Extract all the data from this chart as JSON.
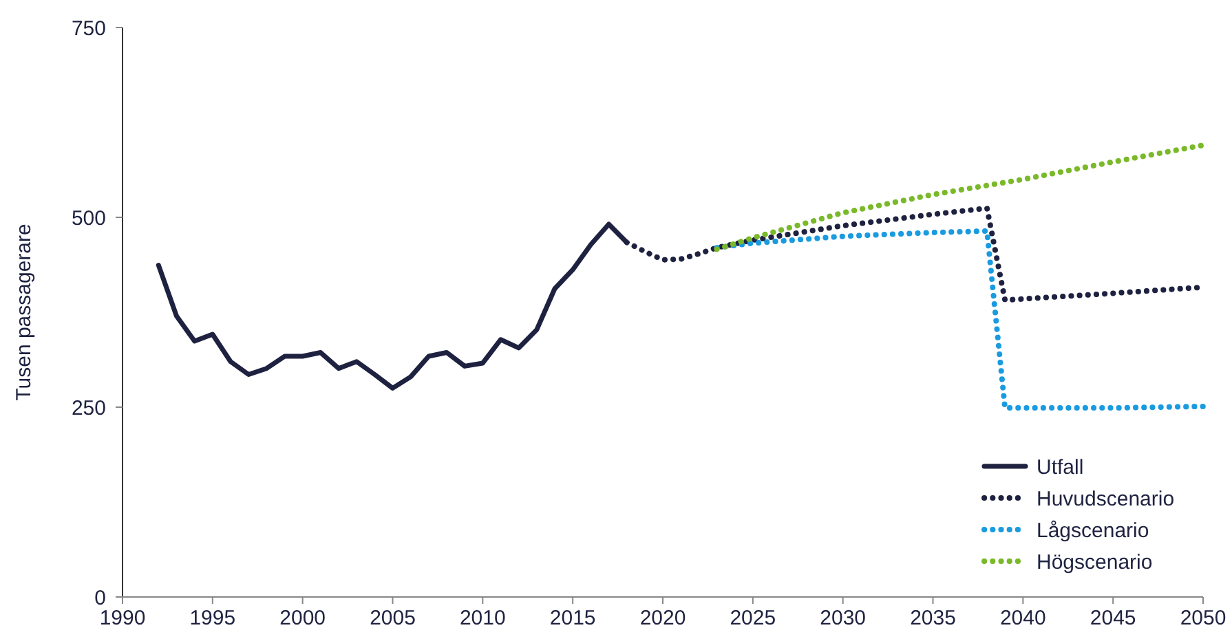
{
  "chart_data": {
    "type": "line",
    "ylabel": "Tusen passagerare",
    "xlim": [
      1990,
      2050
    ],
    "xticks": [
      1990,
      1995,
      2000,
      2005,
      2010,
      2015,
      2020,
      2025,
      2030,
      2035,
      2040,
      2045,
      2050
    ],
    "ylim": [
      0,
      750
    ],
    "yticks": [
      0,
      250,
      500,
      750
    ],
    "grid": false,
    "legend": "bottom right",
    "series": [
      {
        "name": "Utfall",
        "color": "#1e2240",
        "line_style": "solid",
        "x": [
          1992,
          1993,
          1994,
          1995,
          1996,
          1997,
          1998,
          1999,
          2000,
          2001,
          2002,
          2003,
          2004,
          2005,
          2006,
          2007,
          2008,
          2009,
          2010,
          2011,
          2012,
          2013,
          2014,
          2015,
          2016,
          2017,
          2018
        ],
        "values": [
          437,
          370,
          337,
          346,
          310,
          293,
          301,
          317,
          317,
          322,
          301,
          310,
          293,
          275,
          290,
          317,
          322,
          304,
          308,
          339,
          328,
          352,
          406,
          431,
          464,
          491,
          467
        ]
      },
      {
        "name": "Huvudscenario",
        "color": "#1e2240",
        "line_style": "dotted",
        "x": [
          2018,
          2019,
          2020,
          2021,
          2022,
          2023,
          2025,
          2030,
          2035,
          2038,
          2039,
          2045,
          2050
        ],
        "values": [
          467,
          455,
          444,
          445,
          452,
          460,
          470,
          489,
          504,
          512,
          391,
          400,
          408
        ]
      },
      {
        "name": "Lågscenario",
        "color": "#1a9be0",
        "line_style": "dotted",
        "x": [
          2023,
          2025,
          2030,
          2035,
          2038,
          2039,
          2045,
          2050
        ],
        "values": [
          460,
          466,
          475,
          480,
          482,
          249,
          249,
          251
        ]
      },
      {
        "name": "Högscenario",
        "color": "#7ab929",
        "line_style": "dotted",
        "x": [
          2023,
          2025,
          2030,
          2035,
          2040,
          2045,
          2050
        ],
        "values": [
          458,
          473,
          506,
          530,
          550,
          573,
          595
        ]
      }
    ]
  }
}
